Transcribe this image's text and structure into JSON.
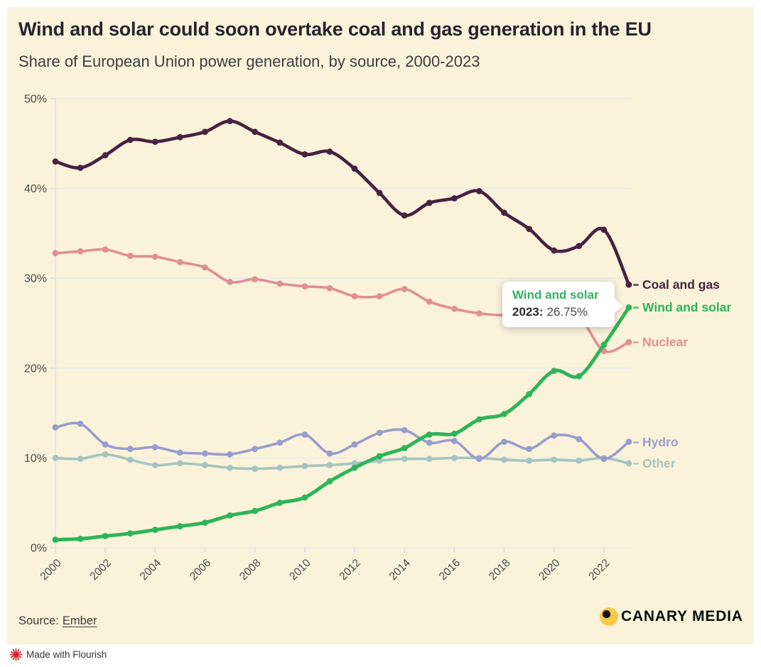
{
  "chart_data": {
    "type": "line",
    "title": "Wind and solar could soon overtake coal and gas generation in the EU",
    "subtitle": "Share of European Union power generation, by source, 2000-2023",
    "x": [
      2000,
      2001,
      2002,
      2003,
      2004,
      2005,
      2006,
      2007,
      2008,
      2009,
      2010,
      2011,
      2012,
      2013,
      2014,
      2015,
      2016,
      2017,
      2018,
      2019,
      2020,
      2021,
      2022,
      2023
    ],
    "x_tick_labels": [
      "2000",
      "2002",
      "2004",
      "2006",
      "2008",
      "2010",
      "2012",
      "2014",
      "2016",
      "2018",
      "2020",
      "2022"
    ],
    "y_tick_labels": [
      "0%",
      "10%",
      "20%",
      "30%",
      "40%",
      "50%"
    ],
    "ylim": [
      0,
      50
    ],
    "grid": "horizontal",
    "legend_position": "right-end-labels",
    "series": [
      {
        "name": "Coal and gas",
        "color": "#472242",
        "values": [
          43.0,
          42.3,
          43.7,
          45.4,
          45.2,
          45.7,
          46.3,
          47.5,
          46.3,
          45.1,
          43.8,
          44.1,
          42.2,
          39.5,
          37.0,
          38.4,
          38.9,
          39.7,
          37.3,
          35.5,
          33.1,
          33.6,
          35.4,
          29.3
        ]
      },
      {
        "name": "Nuclear",
        "color": "#e18f90",
        "values": [
          32.8,
          33.0,
          33.2,
          32.5,
          32.4,
          31.8,
          31.2,
          29.6,
          29.9,
          29.4,
          29.1,
          28.9,
          28.0,
          28.0,
          28.8,
          27.4,
          26.6,
          26.1,
          25.9,
          26.2,
          25.4,
          25.7,
          21.9,
          22.9
        ]
      },
      {
        "name": "Wind and solar",
        "color": "#2eb45c",
        "values": [
          0.9,
          1.0,
          1.3,
          1.6,
          2.0,
          2.4,
          2.8,
          3.6,
          4.1,
          5.0,
          5.6,
          7.4,
          8.9,
          10.2,
          11.1,
          12.6,
          12.7,
          14.3,
          14.9,
          17.1,
          19.7,
          19.1,
          22.6,
          26.75
        ]
      },
      {
        "name": "Hydro",
        "color": "#989dce",
        "values": [
          13.4,
          13.8,
          11.5,
          11.0,
          11.2,
          10.6,
          10.5,
          10.4,
          11.0,
          11.7,
          12.6,
          10.5,
          11.5,
          12.8,
          13.1,
          11.7,
          11.9,
          9.9,
          11.8,
          11.0,
          12.5,
          12.1,
          9.9,
          11.8
        ]
      },
      {
        "name": "Other",
        "color": "#a5c4c1",
        "values": [
          10.0,
          9.9,
          10.4,
          9.8,
          9.2,
          9.4,
          9.2,
          8.9,
          8.8,
          8.9,
          9.1,
          9.2,
          9.4,
          9.7,
          9.9,
          9.9,
          10.0,
          10.0,
          9.8,
          9.7,
          9.8,
          9.7,
          10.0,
          9.4
        ]
      }
    ]
  },
  "ui": {
    "tooltip": {
      "series": "Wind and solar",
      "year_label": "2023:",
      "value": "26.75%"
    },
    "source": {
      "prefix": "Source:",
      "link_text": "Ember"
    },
    "canary_logo_text": "CANARY MEDIA",
    "flourish_credit": "Made with Flourish"
  }
}
